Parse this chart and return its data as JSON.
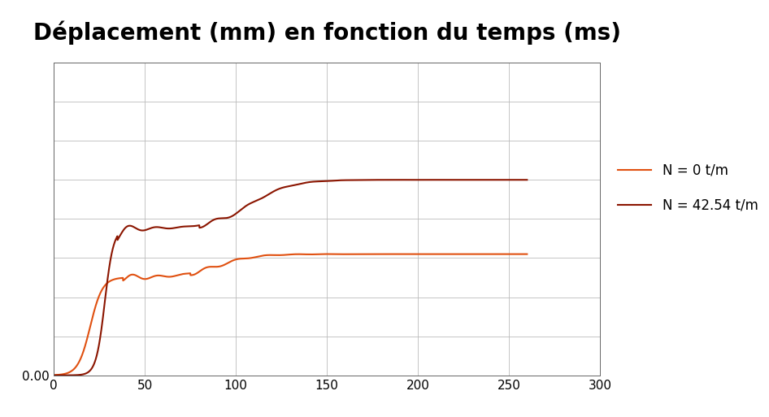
{
  "title": "Déplacement (mm) en fonction du temps (ms)",
  "title_fontsize": 20,
  "title_fontweight": "bold",
  "color_N0": "#E05010",
  "color_N42": "#8B1500",
  "legend_N0": "N = 0 t/m",
  "legend_N42": "N = 42.54 t/m",
  "xlim": [
    0,
    300
  ],
  "ylim": [
    0,
    1.6
  ],
  "xticks": [
    0,
    50,
    100,
    150,
    200,
    250,
    300
  ],
  "background_color": "#ffffff",
  "line_width": 1.5,
  "grid_color": "#bbbbbb",
  "grid_linewidth": 0.6
}
